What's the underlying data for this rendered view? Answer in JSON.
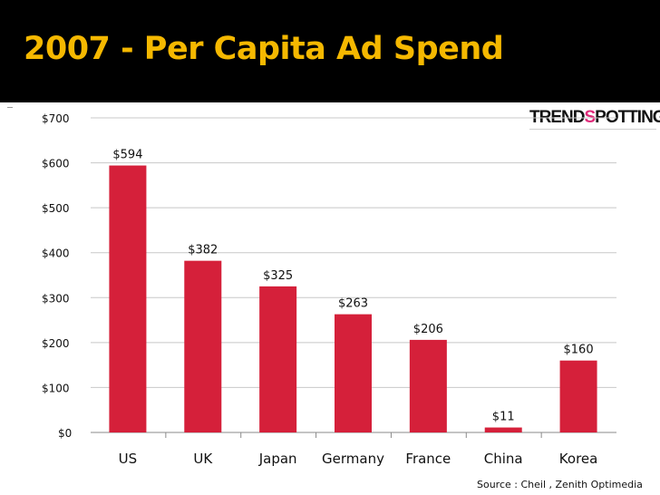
{
  "title": "2007 - Per Capita Ad Spend",
  "logo": {
    "part1": "TREND",
    "heart": "S",
    "part2": "POTTING"
  },
  "source": "Source : Cheil , Zenith Optimedia",
  "colors": {
    "header_bg": "#000000",
    "title": "#f5b800",
    "bar": "#d5203a"
  },
  "chart_data": {
    "type": "bar",
    "categories": [
      "US",
      "UK",
      "Japan",
      "Germany",
      "France",
      "China",
      "Korea"
    ],
    "values": [
      594,
      382,
      325,
      263,
      206,
      11,
      160
    ],
    "data_labels": [
      "$594",
      "$382",
      "$325",
      "$263",
      "$206",
      "$11",
      "$160"
    ],
    "ylim": [
      0,
      700
    ],
    "yticks": [
      0,
      100,
      200,
      300,
      400,
      500,
      600,
      700
    ],
    "ytick_labels": [
      "$0",
      "$100",
      "$200",
      "$300",
      "$400",
      "$500",
      "$600",
      "$700"
    ],
    "grid": true,
    "legend": "none",
    "xlabel": "",
    "ylabel": ""
  }
}
